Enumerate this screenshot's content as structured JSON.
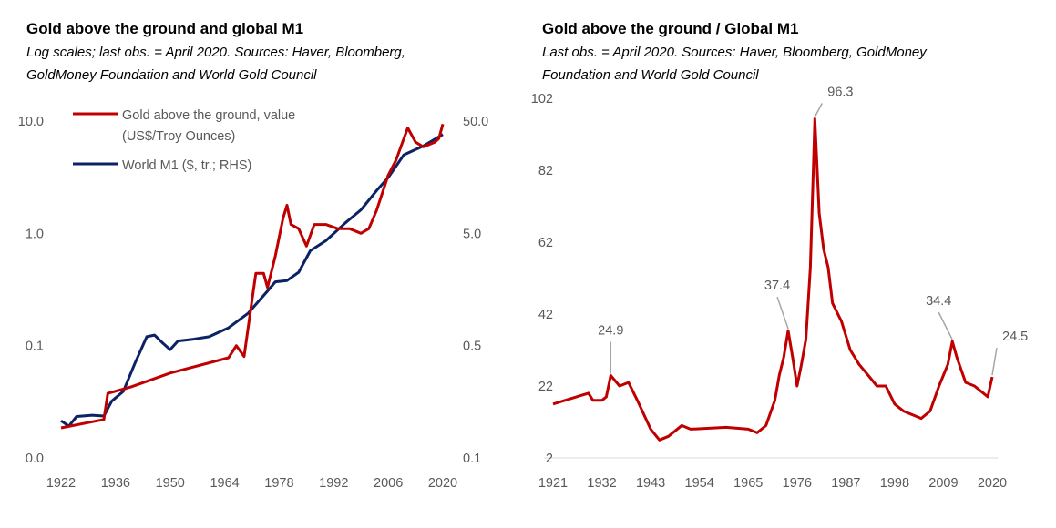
{
  "chart_data": [
    {
      "type": "line",
      "title": "Gold above the ground  and global M1",
      "subtitle": "Log scales; last obs. = April 2020. Sources: Haver, Bloomberg, GoldMoney Foundation and World Gold Council",
      "x_ticks": [
        "1922",
        "1936",
        "1950",
        "1964",
        "1978",
        "1992",
        "2006",
        "2020"
      ],
      "xlim": [
        1922,
        2020
      ],
      "y_left": {
        "scale": "log",
        "range": [
          0.01,
          10
        ],
        "ticks": [
          10,
          1,
          0.1,
          0.01
        ],
        "tick_labels": [
          "10.0",
          "1.0",
          "0.1",
          "0.0"
        ]
      },
      "y_right": {
        "scale": "log",
        "range": [
          0.05,
          50
        ],
        "ticks": [
          50,
          5,
          0.5,
          0.05
        ],
        "tick_labels": [
          "50.0",
          "5.0",
          "0.5",
          "0.1"
        ]
      },
      "grid": false,
      "legend_placement": "top-left",
      "series": [
        {
          "name": "Gold above the ground, value",
          "name_line2": "(US$/Troy Ounces)",
          "axis": "left",
          "color": "#C00000",
          "x": [
            1922,
            1933,
            1934,
            1940,
            1950,
            1965,
            1967,
            1969,
            1971,
            1972,
            1974,
            1975,
            1977,
            1979,
            1980,
            1981,
            1983,
            1985,
            1987,
            1990,
            1993,
            1996,
            1999,
            2001,
            2003,
            2006,
            2008,
            2011,
            2013,
            2015,
            2018,
            2019,
            2020
          ],
          "y": [
            0.0185,
            0.022,
            0.0376,
            0.043,
            0.057,
            0.078,
            0.1,
            0.08,
            0.25,
            0.44,
            0.44,
            0.33,
            0.63,
            1.37,
            1.78,
            1.2,
            1.1,
            0.77,
            1.2,
            1.2,
            1.1,
            1.1,
            1.0,
            1.1,
            1.6,
            3.3,
            4.5,
            8.7,
            6.5,
            5.9,
            6.5,
            7.0,
            9.4
          ]
        },
        {
          "name": "World M1 ($, tr.; RHS)",
          "axis": "right",
          "color": "#0B2265",
          "x": [
            1922,
            1924,
            1926,
            1930,
            1933,
            1935,
            1938,
            1941,
            1944,
            1946,
            1948,
            1950,
            1952,
            1956,
            1960,
            1965,
            1970,
            1975,
            1977,
            1980,
            1983,
            1986,
            1990,
            1995,
            1999,
            2003,
            2006,
            2010,
            2015,
            2020
          ],
          "y": [
            0.107,
            0.096,
            0.117,
            0.12,
            0.118,
            0.16,
            0.196,
            0.35,
            0.6,
            0.62,
            0.53,
            0.46,
            0.55,
            0.57,
            0.6,
            0.72,
            0.97,
            1.53,
            1.85,
            1.9,
            2.25,
            3.5,
            4.3,
            6.2,
            8.1,
            12,
            15.7,
            25,
            30,
            38
          ]
        }
      ]
    },
    {
      "type": "line",
      "title": "Gold above the ground / Global M1",
      "subtitle": "Last obs. = April 2020. Sources: Haver, Bloomberg, GoldMoney Foundation and World Gold Council",
      "x_ticks": [
        "1921",
        "1932",
        "1943",
        "1954",
        "1965",
        "1976",
        "1987",
        "1998",
        "2009",
        "2020"
      ],
      "xlim": [
        1921,
        2020
      ],
      "ylim": [
        2,
        102
      ],
      "y_ticks": [
        2,
        22,
        42,
        62,
        82,
        102
      ],
      "grid": false,
      "series": [
        {
          "color": "#C00000",
          "x": [
            1921,
            1929,
            1930,
            1932,
            1933,
            1934,
            1936,
            1938,
            1940,
            1943,
            1945,
            1947,
            1950,
            1952,
            1960,
            1965,
            1967,
            1969,
            1971,
            1972,
            1973,
            1974,
            1975,
            1976,
            1977,
            1978,
            1979,
            1980,
            1981,
            1982,
            1983,
            1984,
            1986,
            1988,
            1990,
            1992,
            1994,
            1996,
            1998,
            2000,
            2002,
            2004,
            2006,
            2008,
            2010,
            2011,
            2012,
            2014,
            2016,
            2018,
            2019,
            2020
          ],
          "y": [
            17,
            20,
            18,
            18,
            19,
            24.9,
            22,
            23,
            18,
            10,
            7,
            8,
            11,
            10,
            10.5,
            10,
            9,
            11,
            18,
            25,
            30,
            37.4,
            30,
            22,
            28,
            35,
            55,
            96.3,
            70,
            60,
            55,
            45,
            40,
            32,
            28,
            25,
            22,
            22,
            17,
            15,
            14,
            13,
            15,
            22,
            28,
            34.4,
            30,
            23,
            22,
            20,
            19,
            24.5
          ]
        }
      ],
      "annotations": [
        {
          "x": 1934,
          "y": 24.9,
          "label": "24.9"
        },
        {
          "x": 1974,
          "y": 37.4,
          "label": "37.4"
        },
        {
          "x": 1980,
          "y": 96.3,
          "label": "96.3"
        },
        {
          "x": 2011,
          "y": 34.4,
          "label": "34.4"
        },
        {
          "x": 2020,
          "y": 24.5,
          "label": "24.5"
        }
      ]
    }
  ]
}
